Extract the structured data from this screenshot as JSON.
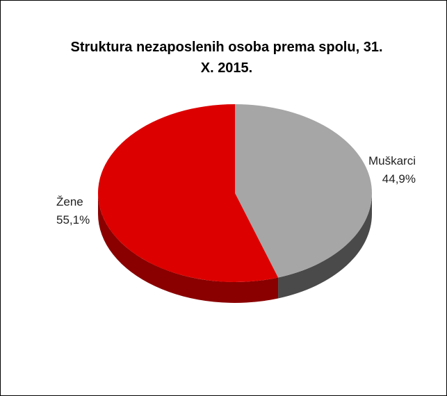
{
  "chart_data": {
    "type": "pie",
    "title": "Struktura nezaposlenih osoba prema spolu, 31. X. 2015.",
    "categories": [
      "Muškarci",
      "Žene"
    ],
    "values": [
      44.9,
      55.1
    ],
    "value_labels": [
      "44,9%",
      "55,1%"
    ],
    "colors": [
      "#a6a6a6",
      "#dd0000"
    ],
    "side_colors": [
      "#4a4a4a",
      "#8a0000"
    ]
  }
}
